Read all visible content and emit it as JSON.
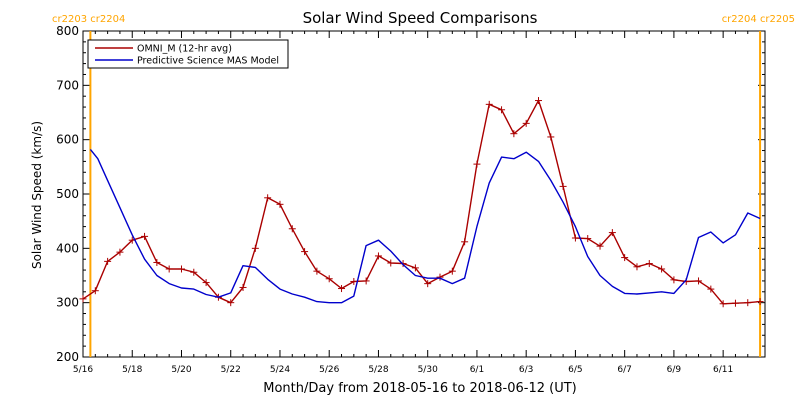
{
  "chart_data": {
    "type": "line",
    "title": "Solar Wind Speed Comparisons",
    "xlabel": "Month/Day from 2018-05-16 to 2018-06-12 (UT)",
    "ylabel": "Solar Wind Speed (km/s)",
    "ylim": [
      200,
      800
    ],
    "yticks": [
      200,
      300,
      400,
      500,
      600,
      700,
      800
    ],
    "xrange_days": [
      0,
      27.7
    ],
    "xticks": [
      {
        "day": 0,
        "label": "5/16"
      },
      {
        "day": 2,
        "label": "5/18"
      },
      {
        "day": 4,
        "label": "5/20"
      },
      {
        "day": 6,
        "label": "5/22"
      },
      {
        "day": 8,
        "label": "5/24"
      },
      {
        "day": 10,
        "label": "5/26"
      },
      {
        "day": 12,
        "label": "5/28"
      },
      {
        "day": 14,
        "label": "5/30"
      },
      {
        "day": 16,
        "label": "6/1"
      },
      {
        "day": 18,
        "label": "6/3"
      },
      {
        "day": 20,
        "label": "6/5"
      },
      {
        "day": 22,
        "label": "6/7"
      },
      {
        "day": 24,
        "label": "6/9"
      },
      {
        "day": 26,
        "label": "6/11"
      }
    ],
    "carrington_markers": [
      {
        "day": 0.3,
        "left_label": "cr2203",
        "right_label": "cr2204",
        "align": "left"
      },
      {
        "day": 27.5,
        "left_label": "cr2204",
        "right_label": "cr2205",
        "align": "right"
      }
    ],
    "legend_position": "top-left",
    "series": [
      {
        "name": "OMNI_M (12-hr avg)",
        "color": "#aa0000",
        "marker": "plus",
        "x": [
          0,
          0.5,
          1,
          1.5,
          2,
          2.5,
          3,
          3.5,
          4,
          4.5,
          5,
          5.5,
          6,
          6.5,
          7,
          7.5,
          8,
          8.5,
          9,
          9.5,
          10,
          10.5,
          11,
          11.5,
          12,
          12.5,
          13,
          13.5,
          14,
          14.5,
          15,
          15.5,
          16,
          16.5,
          17,
          17.5,
          18,
          18.5,
          19,
          19.5,
          20,
          20.5,
          21,
          21.5,
          22,
          22.5,
          23,
          23.5,
          24,
          24.5,
          25,
          25.5,
          26,
          26.5,
          27,
          27.5
        ],
        "values": [
          307,
          322,
          376,
          393,
          415,
          422,
          374,
          362,
          362,
          356,
          337,
          310,
          300,
          328,
          400,
          493,
          481,
          436,
          394,
          358,
          344,
          326,
          339,
          340,
          386,
          373,
          372,
          364,
          335,
          347,
          358,
          412,
          555,
          665,
          655,
          611,
          630,
          672,
          605,
          514,
          419,
          418,
          404,
          429,
          383,
          366,
          372,
          362,
          342,
          339,
          340,
          325,
          298,
          299,
          300,
          302
        ]
      },
      {
        "name": "Predictive Science MAS Model",
        "color": "#0000cc",
        "marker": "none",
        "x": [
          0.3,
          0.6,
          1,
          1.5,
          2,
          2.5,
          3,
          3.5,
          4,
          4.5,
          5,
          5.5,
          6,
          6.5,
          7,
          7.5,
          8,
          8.5,
          9,
          9.5,
          10,
          10.5,
          11,
          11.5,
          12,
          12.5,
          13,
          13.5,
          14,
          14.5,
          15,
          15.5,
          16,
          16.5,
          17,
          17.5,
          18,
          18.5,
          19,
          19.5,
          20,
          20.5,
          21,
          21.5,
          22,
          22.5,
          23,
          23.5,
          24,
          24.5,
          25,
          25.5,
          26,
          26.5,
          27,
          27.5
        ],
        "values": [
          582,
          565,
          525,
          475,
          425,
          380,
          350,
          335,
          327,
          325,
          315,
          310,
          318,
          368,
          365,
          343,
          325,
          316,
          310,
          302,
          300,
          300,
          312,
          405,
          415,
          395,
          370,
          350,
          345,
          345,
          335,
          345,
          440,
          520,
          568,
          565,
          577,
          560,
          525,
          485,
          440,
          385,
          350,
          330,
          317,
          316,
          318,
          320,
          317,
          342,
          420,
          430,
          410,
          425,
          465,
          455
        ]
      }
    ]
  }
}
